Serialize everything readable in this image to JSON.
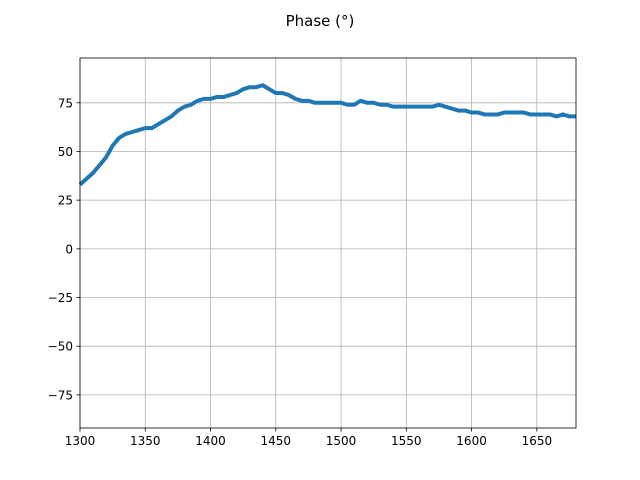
{
  "chart_data": {
    "type": "line",
    "title": "Phase (°)",
    "xlabel": "",
    "ylabel": "",
    "xlim": [
      1300,
      1680
    ],
    "ylim": [
      -92,
      98
    ],
    "xticks": [
      1300,
      1350,
      1400,
      1450,
      1500,
      1550,
      1600,
      1650
    ],
    "yticks": [
      -75,
      -50,
      -25,
      0,
      25,
      50,
      75
    ],
    "grid": true,
    "series_color": "#1f77b4",
    "series": [
      {
        "x": [
          1300,
          1305,
          1310,
          1315,
          1320,
          1325,
          1330,
          1335,
          1340,
          1345,
          1350,
          1355,
          1360,
          1365,
          1370,
          1375,
          1380,
          1385,
          1390,
          1395,
          1400,
          1405,
          1410,
          1415,
          1420,
          1425,
          1430,
          1435,
          1440,
          1445,
          1450,
          1455,
          1460,
          1465,
          1470,
          1475,
          1480,
          1485,
          1490,
          1495,
          1500,
          1505,
          1510,
          1515,
          1520,
          1525,
          1530,
          1535,
          1540,
          1545,
          1550,
          1555,
          1560,
          1565,
          1570,
          1575,
          1580,
          1585,
          1590,
          1595,
          1600,
          1605,
          1610,
          1615,
          1620,
          1625,
          1630,
          1635,
          1640,
          1645,
          1650,
          1655,
          1660,
          1665,
          1670,
          1675,
          1680
        ],
        "values": [
          33,
          36,
          39,
          43,
          47,
          53,
          57,
          59,
          60,
          61,
          62,
          62,
          64,
          66,
          68,
          71,
          73,
          74,
          76,
          77,
          77,
          78,
          78,
          79,
          80,
          82,
          83,
          83,
          84,
          82,
          80,
          80,
          79,
          77,
          76,
          76,
          75,
          75,
          75,
          75,
          75,
          74,
          74,
          76,
          75,
          75,
          74,
          74,
          73,
          73,
          73,
          73,
          73,
          73,
          73,
          74,
          73,
          72,
          71,
          71,
          70,
          70,
          69,
          69,
          69,
          70,
          70,
          70,
          70,
          69,
          69,
          69,
          69,
          68,
          69,
          68,
          68
        ]
      }
    ]
  }
}
